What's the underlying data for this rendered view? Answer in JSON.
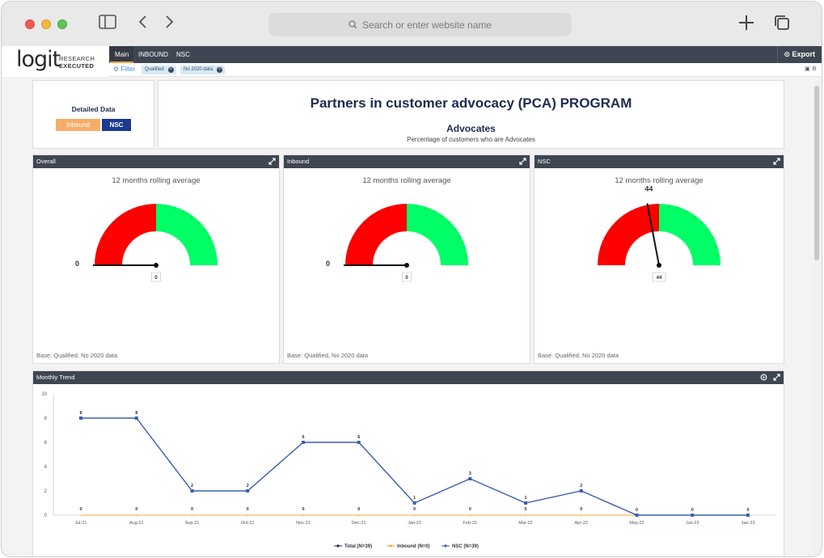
{
  "browser": {
    "url_placeholder": "Search or enter website name"
  },
  "logo": {
    "main": "logit",
    "line1": "RESEARCH",
    "line2": "EXECUTED"
  },
  "nav": {
    "tabs": [
      "Main",
      "INBOUND",
      "NSC"
    ],
    "active": "Main",
    "export_label": "Export"
  },
  "filter": {
    "label": "Filter",
    "chips": [
      "Qualified",
      "No 2020 data"
    ]
  },
  "detail": {
    "title": "Detailed Data",
    "inbound_label": "Inbound",
    "nsc_label": "NSC"
  },
  "program": {
    "title": "Partners in customer advocacy (PCA) PROGRAM",
    "subtitle": "Advocates",
    "description": "Percentage of customers who are Advocates"
  },
  "panels": [
    {
      "title": "Overall",
      "subtitle": "12 months rolling average",
      "value": 0,
      "value_label": "0",
      "tooltip": "0",
      "base": "Base: Qualified, No 2020 data"
    },
    {
      "title": "Inbound",
      "subtitle": "12 months rolling average",
      "value": 0,
      "value_label": "0",
      "tooltip": "0",
      "base": "Base: Qualified, No 2020 data"
    },
    {
      "title": "NSC",
      "subtitle": "12 months rolling average",
      "value": 44,
      "value_label": "44",
      "tooltip": "44",
      "base": "Base: Qualified, No 2020 data"
    }
  ],
  "gauge_scale": {
    "min": 0,
    "max": 100,
    "red_end": 50,
    "colors": {
      "red": "#ff0000",
      "green": "#00ff66",
      "needle": "#111111"
    }
  },
  "trend": {
    "title": "Monthly Trend"
  },
  "chart_data": {
    "type": "line",
    "x": [
      "Jul-21",
      "Aug-21",
      "Sep-21",
      "Oct-21",
      "Nov-21",
      "Dec-21",
      "Jan-22",
      "Feb-22",
      "Mar-22",
      "Apr-22",
      "May-22",
      "Jun-22",
      "Jan-23"
    ],
    "series": [
      {
        "name": "Total (N=39)",
        "color": "#1d2b50",
        "values": [
          0,
          0,
          0,
          0,
          0,
          0,
          0,
          0,
          0,
          0,
          0,
          0,
          0
        ]
      },
      {
        "name": "Inbound (N=0)",
        "color": "#f3a43b",
        "values": [
          0,
          0,
          0,
          0,
          0,
          0,
          0,
          0,
          0,
          0,
          0,
          0,
          0
        ]
      },
      {
        "name": "NSC (N=39)",
        "color": "#3a5fb0",
        "values": [
          8,
          8,
          2,
          2,
          6,
          6,
          1,
          3,
          1,
          2,
          0,
          0,
          0
        ]
      }
    ],
    "data_labels": [
      "8",
      "8",
      "2",
      "2",
      "6",
      "6",
      "1",
      "3",
      "1",
      "2",
      "0",
      "0",
      "0"
    ],
    "zero_labels": [
      "0",
      "0",
      "0",
      "0",
      "0",
      "0",
      "0",
      "0",
      "0",
      "0",
      "",
      "",
      ""
    ],
    "ylim": [
      0,
      10
    ],
    "yticks": [
      "0",
      "2",
      "4",
      "6",
      "8",
      "10"
    ],
    "grid": false,
    "legend": "bottom"
  }
}
